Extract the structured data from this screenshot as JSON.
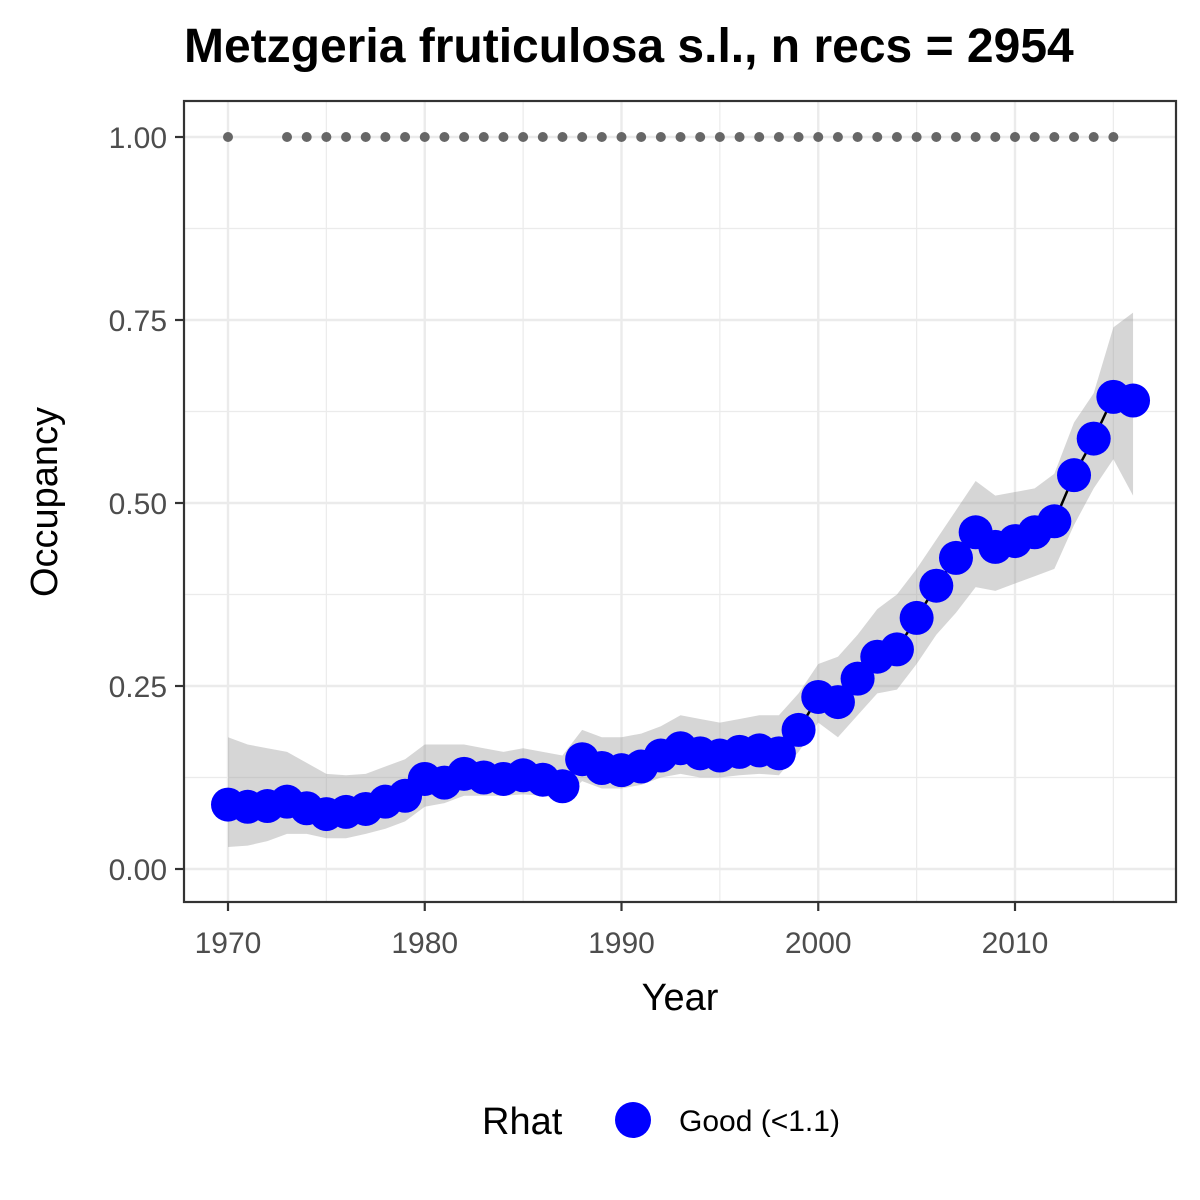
{
  "chart_data": {
    "type": "line",
    "title": "Metzgeria fruticulosa s.l., n recs = 2954",
    "xlabel": "Year",
    "ylabel": "Occupancy",
    "xlim": [
      1970,
      2016
    ],
    "ylim": [
      0,
      1
    ],
    "x_ticks": [
      1970,
      1980,
      1990,
      2000,
      2010
    ],
    "x_tick_labels": [
      "1970",
      "1980",
      "1990",
      "2000",
      "2010"
    ],
    "y_ticks": [
      0,
      0.25,
      0.5,
      0.75,
      1.0
    ],
    "y_tick_labels": [
      "0.00",
      "0.25",
      "0.50",
      "0.75",
      "1.00"
    ],
    "grid": true,
    "legend_position": "bottom",
    "legend": {
      "title": "Rhat",
      "entries": [
        {
          "label": "Good (<1.1)",
          "color": "#0000ff"
        }
      ]
    },
    "series": [
      {
        "name": "Good (<1.1)",
        "color": "#0000ff",
        "x": [
          1970,
          1971,
          1972,
          1973,
          1974,
          1975,
          1976,
          1977,
          1978,
          1979,
          1980,
          1981,
          1982,
          1983,
          1984,
          1985,
          1986,
          1987,
          1988,
          1989,
          1990,
          1991,
          1992,
          1993,
          1994,
          1995,
          1996,
          1997,
          1998,
          1999,
          2000,
          2001,
          2002,
          2003,
          2004,
          2005,
          2006,
          2007,
          2008,
          2009,
          2010,
          2011,
          2012,
          2013,
          2014,
          2015,
          2016
        ],
        "y": [
          0.088,
          0.085,
          0.086,
          0.092,
          0.083,
          0.075,
          0.078,
          0.082,
          0.092,
          0.1,
          0.123,
          0.118,
          0.13,
          0.125,
          0.123,
          0.128,
          0.122,
          0.113,
          0.15,
          0.138,
          0.135,
          0.14,
          0.155,
          0.165,
          0.158,
          0.155,
          0.16,
          0.162,
          0.158,
          0.19,
          0.235,
          0.228,
          0.26,
          0.29,
          0.3,
          0.343,
          0.387,
          0.425,
          0.46,
          0.44,
          0.448,
          0.46,
          0.475,
          0.538,
          0.588,
          0.645,
          0.64
        ],
        "lower": [
          0.03,
          0.032,
          0.038,
          0.048,
          0.048,
          0.042,
          0.042,
          0.048,
          0.055,
          0.065,
          0.085,
          0.09,
          0.1,
          0.1,
          0.1,
          0.102,
          0.1,
          0.095,
          0.12,
          0.11,
          0.11,
          0.115,
          0.125,
          0.13,
          0.125,
          0.125,
          0.128,
          0.13,
          0.128,
          0.16,
          0.2,
          0.18,
          0.21,
          0.24,
          0.245,
          0.28,
          0.32,
          0.35,
          0.385,
          0.38,
          0.39,
          0.4,
          0.41,
          0.47,
          0.52,
          0.56,
          0.51
        ],
        "upper": [
          0.18,
          0.17,
          0.165,
          0.16,
          0.145,
          0.13,
          0.128,
          0.13,
          0.14,
          0.15,
          0.17,
          0.17,
          0.17,
          0.165,
          0.16,
          0.165,
          0.16,
          0.155,
          0.19,
          0.18,
          0.18,
          0.185,
          0.195,
          0.21,
          0.205,
          0.2,
          0.205,
          0.21,
          0.21,
          0.24,
          0.28,
          0.29,
          0.32,
          0.355,
          0.375,
          0.41,
          0.45,
          0.49,
          0.53,
          0.51,
          0.515,
          0.52,
          0.54,
          0.61,
          0.65,
          0.74,
          0.76
        ]
      }
    ],
    "detection_points": {
      "y": 1.0,
      "color": "#666666",
      "x": [
        1970,
        1973,
        1974,
        1975,
        1976,
        1977,
        1978,
        1979,
        1980,
        1981,
        1982,
        1983,
        1984,
        1985,
        1986,
        1987,
        1988,
        1989,
        1990,
        1991,
        1992,
        1993,
        1994,
        1995,
        1996,
        1997,
        1998,
        1999,
        2000,
        2001,
        2002,
        2003,
        2004,
        2005,
        2006,
        2007,
        2008,
        2009,
        2010,
        2011,
        2012,
        2013,
        2014,
        2015
      ]
    }
  }
}
